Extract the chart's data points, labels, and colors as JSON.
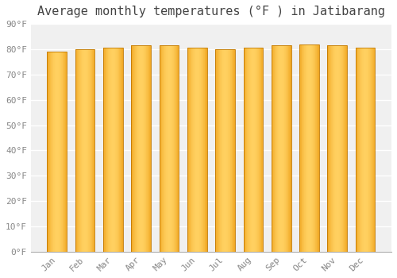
{
  "title": "Average monthly temperatures (°F ) in Jatibarang",
  "months": [
    "Jan",
    "Feb",
    "Mar",
    "Apr",
    "May",
    "Jun",
    "Jul",
    "Aug",
    "Sep",
    "Oct",
    "Nov",
    "Dec"
  ],
  "values": [
    79,
    80,
    80.5,
    81.5,
    81.5,
    80.5,
    80,
    80.5,
    81.5,
    82,
    81.5,
    80.5
  ],
  "ylim": [
    0,
    90
  ],
  "yticks": [
    0,
    10,
    20,
    30,
    40,
    50,
    60,
    70,
    80,
    90
  ],
  "bar_color_center": "#FFD060",
  "bar_color_edge": "#E89000",
  "background_color": "#ffffff",
  "plot_bg_color": "#f0f0f0",
  "grid_color": "#ffffff",
  "title_fontsize": 11,
  "tick_fontsize": 8,
  "bar_width": 0.7
}
